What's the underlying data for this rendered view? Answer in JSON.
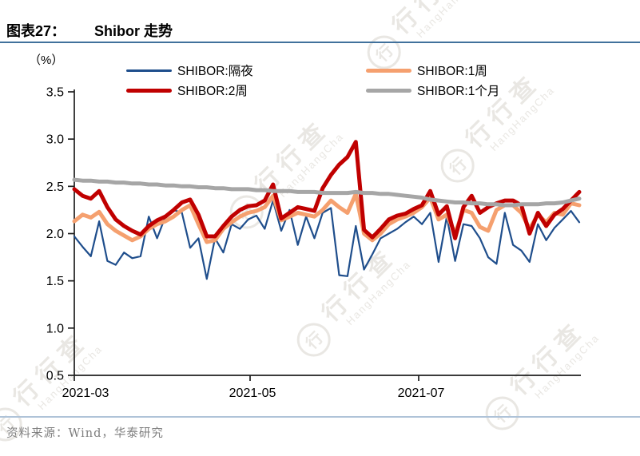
{
  "title": {
    "chart_no": "图表27：",
    "text": "Shibor 走势"
  },
  "y_axis_unit": "（%）",
  "source_note": "资料来源：Wind，华泰研究",
  "watermark": {
    "cn": "行行查",
    "en": "HangHangCha",
    "badge": "行"
  },
  "legend": [
    {
      "label": "SHIBOR:隔夜",
      "color": "#1F4E8C",
      "swatch_height": 3
    },
    {
      "label": "SHIBOR:1周",
      "color": "#F5A06F",
      "swatch_height": 5
    },
    {
      "label": "SHIBOR:2周",
      "color": "#C00000",
      "swatch_height": 5
    },
    {
      "label": "SHIBOR:1个月",
      "color": "#A6A6A6",
      "swatch_height": 5
    }
  ],
  "chart_data": {
    "type": "line",
    "title": "Shibor 走势",
    "ylabel": "（%）",
    "ylim": [
      0.5,
      3.5
    ],
    "y_ticks": [
      0.5,
      1.0,
      1.5,
      2.0,
      2.5,
      3.0,
      3.5
    ],
    "x_tick_labels": [
      "2021-03",
      "2021-05",
      "2021-07"
    ],
    "grid": false,
    "legend_position": "top",
    "dates": [
      "2021-03-01",
      "2021-03-04",
      "2021-03-07",
      "2021-03-10",
      "2021-03-13",
      "2021-03-16",
      "2021-03-19",
      "2021-03-22",
      "2021-03-25",
      "2021-03-28",
      "2021-03-31",
      "2021-04-03",
      "2021-04-06",
      "2021-04-09",
      "2021-04-12",
      "2021-04-15",
      "2021-04-18",
      "2021-04-21",
      "2021-04-24",
      "2021-04-27",
      "2021-04-30",
      "2021-05-03",
      "2021-05-06",
      "2021-05-09",
      "2021-05-12",
      "2021-05-15",
      "2021-05-18",
      "2021-05-21",
      "2021-05-24",
      "2021-05-27",
      "2021-05-30",
      "2021-06-02",
      "2021-06-05",
      "2021-06-08",
      "2021-06-11",
      "2021-06-14",
      "2021-06-17",
      "2021-06-20",
      "2021-06-23",
      "2021-06-26",
      "2021-06-29",
      "2021-07-02",
      "2021-07-05",
      "2021-07-08",
      "2021-07-11",
      "2021-07-14",
      "2021-07-17",
      "2021-07-20",
      "2021-07-23",
      "2021-07-26",
      "2021-07-29",
      "2021-08-01",
      "2021-08-04",
      "2021-08-07",
      "2021-08-10",
      "2021-08-13",
      "2021-08-16",
      "2021-08-19",
      "2021-08-22",
      "2021-08-25",
      "2021-08-28",
      "2021-08-31"
    ],
    "series": [
      {
        "name": "SHIBOR:隔夜",
        "color": "#1F4E8C",
        "width": 2.2,
        "values": [
          1.97,
          1.86,
          1.76,
          2.13,
          1.71,
          1.67,
          1.8,
          1.74,
          1.76,
          2.18,
          1.95,
          2.18,
          2.25,
          2.22,
          1.85,
          1.95,
          1.52,
          1.95,
          1.8,
          2.1,
          2.05,
          2.15,
          2.19,
          2.05,
          2.35,
          2.03,
          2.25,
          1.88,
          2.18,
          1.95,
          2.22,
          2.27,
          1.56,
          1.55,
          2.08,
          1.62,
          1.78,
          1.95,
          2.0,
          2.05,
          2.12,
          2.18,
          2.1,
          2.22,
          1.7,
          2.18,
          1.71,
          2.1,
          2.08,
          1.95,
          1.75,
          1.68,
          2.22,
          1.88,
          1.82,
          1.7,
          2.1,
          1.93,
          2.06,
          2.15,
          2.24,
          2.12
        ]
      },
      {
        "name": "SHIBOR:1周",
        "color": "#F5A06F",
        "width": 5,
        "values": [
          2.13,
          2.2,
          2.17,
          2.23,
          2.1,
          2.03,
          1.98,
          1.93,
          1.97,
          2.05,
          2.1,
          2.13,
          2.18,
          2.25,
          2.3,
          2.1,
          1.91,
          1.93,
          2.05,
          2.12,
          2.18,
          2.22,
          2.24,
          2.28,
          2.4,
          2.14,
          2.18,
          2.22,
          2.2,
          2.18,
          2.25,
          2.35,
          2.28,
          2.22,
          2.42,
          2.0,
          1.93,
          2.0,
          2.1,
          2.15,
          2.18,
          2.22,
          2.28,
          2.38,
          2.15,
          2.2,
          2.0,
          2.25,
          2.22,
          2.07,
          2.03,
          2.25,
          2.3,
          2.3,
          2.22,
          2.05,
          2.2,
          2.12,
          2.22,
          2.2,
          2.32,
          2.3
        ]
      },
      {
        "name": "SHIBOR:2周",
        "color": "#C00000",
        "width": 5,
        "values": [
          2.47,
          2.4,
          2.37,
          2.45,
          2.28,
          2.15,
          2.08,
          2.03,
          1.99,
          2.08,
          2.14,
          2.18,
          2.25,
          2.33,
          2.36,
          2.2,
          1.97,
          1.97,
          2.08,
          2.18,
          2.25,
          2.29,
          2.3,
          2.35,
          2.52,
          2.16,
          2.22,
          2.28,
          2.26,
          2.24,
          2.48,
          2.62,
          2.73,
          2.81,
          2.97,
          2.04,
          1.96,
          2.05,
          2.15,
          2.19,
          2.21,
          2.26,
          2.3,
          2.45,
          2.2,
          2.29,
          1.95,
          2.28,
          2.4,
          2.22,
          2.28,
          2.32,
          2.35,
          2.35,
          2.3,
          2.0,
          2.22,
          2.08,
          2.2,
          2.26,
          2.35,
          2.44
        ]
      },
      {
        "name": "SHIBOR:1个月",
        "color": "#A6A6A6",
        "width": 5,
        "values": [
          2.57,
          2.56,
          2.56,
          2.55,
          2.55,
          2.54,
          2.54,
          2.53,
          2.53,
          2.52,
          2.52,
          2.51,
          2.51,
          2.5,
          2.5,
          2.49,
          2.49,
          2.48,
          2.48,
          2.47,
          2.47,
          2.47,
          2.46,
          2.46,
          2.45,
          2.45,
          2.45,
          2.44,
          2.44,
          2.44,
          2.43,
          2.43,
          2.43,
          2.43,
          2.44,
          2.43,
          2.43,
          2.42,
          2.42,
          2.41,
          2.4,
          2.39,
          2.38,
          2.36,
          2.35,
          2.34,
          2.33,
          2.33,
          2.32,
          2.32,
          2.31,
          2.31,
          2.3,
          2.3,
          2.31,
          2.31,
          2.31,
          2.32,
          2.32,
          2.33,
          2.35,
          2.37
        ]
      }
    ]
  }
}
